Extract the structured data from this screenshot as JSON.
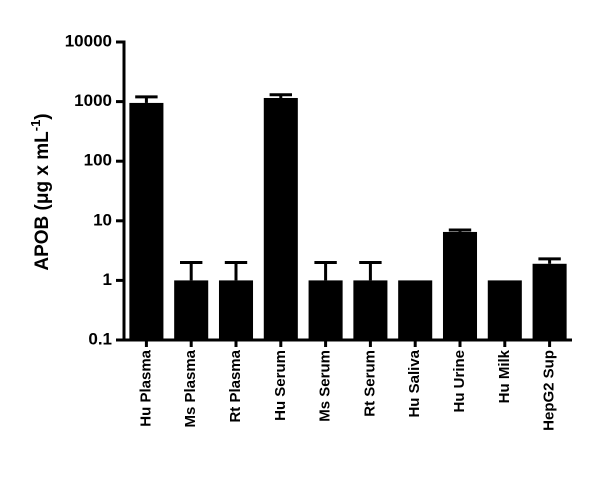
{
  "chart_data": {
    "type": "bar",
    "y_label": [
      "APOB (μg x mL",
      "-1",
      ")"
    ],
    "categories": [
      "Hu Plasma",
      "Ms Plasma",
      "Rt Plasma",
      "Hu Serum",
      "Ms Serum",
      "Rt Serum",
      "Hu Saliva",
      "Hu Urine",
      "Hu Milk",
      "HepG2 Sup"
    ],
    "values": [
      950,
      1,
      1,
      1150,
      1,
      1,
      1,
      6.5,
      1,
      1.9
    ],
    "errors": [
      250,
      1,
      1,
      150,
      1,
      1,
      0,
      0.5,
      0,
      0.4
    ],
    "color": "#000000",
    "log_scale": true,
    "ylim": [
      0.1,
      10000
    ],
    "yticks": [
      0.1,
      1,
      10,
      100,
      1000,
      10000
    ]
  }
}
